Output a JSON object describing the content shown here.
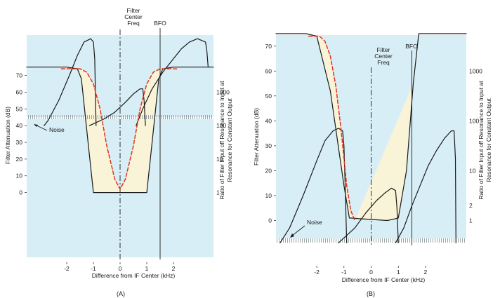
{
  "colors": {
    "band": "#d8eef6",
    "ylw": "#fbf3d6",
    "red": "#e0331e",
    "ink": "#1a1a1a",
    "grass": "#9aa5a8"
  },
  "chart_data": [
    {
      "type": "line",
      "caption": "(A)",
      "xlabel": "Difference from IF Center (kHz)",
      "ylabel_left": "Filter Attenuation (dB)",
      "ylabel_right": "Ratio of Filter Input off Resonance to Input at Resonance for Constant Output",
      "xlim": [
        -3.5,
        3.5
      ],
      "x_ticks": [
        "-2",
        "-1",
        "0",
        "1",
        "2"
      ],
      "x_tick_values": [
        -2,
        -1,
        0,
        1,
        2
      ],
      "ylim": [
        -40,
        95
      ],
      "y_ticks": [
        "0",
        "10",
        "20",
        "30",
        "40",
        "50",
        "60",
        "70"
      ],
      "y_tick_values": [
        0,
        10,
        20,
        30,
        40,
        50,
        60,
        70
      ],
      "right_ticks": [
        "1",
        "10",
        "100",
        "1000"
      ],
      "right_tick_values": [
        0,
        20,
        40,
        60
      ],
      "annotations": {
        "center": "Filter Center Freq",
        "bfo": "BFO",
        "noise": "Noise"
      },
      "center_x": 0,
      "bfo_x": 1.5,
      "noise_level": 40,
      "filter_response": {
        "x": [
          -3.5,
          -2,
          -1.6,
          -1.45,
          -1.2,
          -1,
          1,
          1.2,
          1.45,
          1.6,
          2,
          3.5
        ],
        "y": [
          75,
          75,
          74,
          68,
          30,
          0,
          0,
          30,
          68,
          74,
          75,
          75
        ]
      },
      "ideal_response": {
        "x": [
          -2.2,
          -1.5,
          -1.25,
          -1,
          -0.75,
          -0.5,
          -0.2,
          0,
          0.2,
          0.5,
          0.75,
          1,
          1.25,
          1.5,
          2.2
        ],
        "y": [
          74,
          74,
          72,
          65,
          50,
          28,
          8,
          2,
          8,
          28,
          50,
          65,
          72,
          74,
          74
        ]
      },
      "image_curve": {
        "x": [
          -2.85,
          -2.7,
          -2.3,
          -1.9,
          -1.6,
          -1.35,
          -1.1,
          -1.0,
          -0.95,
          -0.9
        ],
        "y": [
          40,
          43,
          55,
          70,
          82,
          90,
          92,
          90,
          80,
          40
        ]
      },
      "signal_curve": {
        "x": [
          -1.15,
          -0.6,
          -0.2,
          0.2,
          0.5,
          0.75,
          0.85,
          0.9,
          0.95
        ],
        "y": [
          40,
          44,
          48,
          54,
          59,
          62,
          62,
          55,
          40
        ]
      },
      "opposite_curve": {
        "x": [
          0.6,
          0.85,
          1.2,
          1.6,
          2.0,
          2.3,
          2.6,
          2.9,
          3.2,
          3.25,
          3.3
        ],
        "y": [
          40,
          50,
          62,
          72,
          80,
          86,
          90,
          92,
          90,
          85,
          75
        ]
      }
    },
    {
      "type": "line",
      "caption": "(B)",
      "xlabel": "Difference from IF Center (kHz)",
      "ylabel_left": "Filter Attenuation (dB)",
      "ylabel_right": "Ratio of Filter Input off Resonance to Input at Resonance for Constant Output",
      "xlim": [
        -3.5,
        3.5
      ],
      "x_ticks": [
        "-2",
        "-1",
        "0",
        "1",
        "2"
      ],
      "x_tick_values": [
        -2,
        -1,
        0,
        1,
        2
      ],
      "ylim": [
        -10,
        75
      ],
      "y_ticks": [
        "0",
        "10",
        "20",
        "30",
        "40",
        "50",
        "60",
        "70"
      ],
      "y_tick_values": [
        0,
        10,
        20,
        30,
        40,
        50,
        60,
        70
      ],
      "right_ticks": [
        "1",
        "2",
        "10",
        "100",
        "1000"
      ],
      "right_tick_values": [
        0,
        6,
        20,
        40,
        60
      ],
      "annotations": {
        "center": "Filter Center Freq",
        "bfo": "BFO",
        "noise": "Noise"
      },
      "center_x": 0,
      "bfo_x": 1.5,
      "noise_level": -10,
      "filter_response": {
        "x": [
          -3.5,
          -2.4,
          -2.0,
          -1.5,
          -1.0,
          -0.8,
          0.6,
          1.0,
          1.3,
          1.55,
          1.75,
          3.5
        ],
        "y": [
          75,
          75,
          74,
          52,
          14,
          1,
          0,
          1,
          20,
          55,
          75,
          75
        ]
      },
      "ideal_response": {
        "x": [
          -2.3,
          -1.9,
          -1.7,
          -1.5,
          -1.3,
          -1.1,
          -0.9,
          -0.75,
          -0.6
        ],
        "y": [
          74,
          74,
          72,
          66,
          54,
          36,
          14,
          4,
          0
        ]
      },
      "image_curve": {
        "x": [
          -3.35,
          -3.0,
          -2.5,
          -2.0,
          -1.7,
          -1.4,
          -1.2,
          -1.05,
          -1.0,
          -0.95,
          -0.9
        ],
        "y": [
          -9,
          -3,
          10,
          24,
          32,
          36,
          37,
          36,
          30,
          12,
          -9
        ]
      },
      "signal_curve": {
        "x": [
          -1.2,
          -0.6,
          -0.2,
          0.2,
          0.5,
          0.75,
          0.9,
          0.95,
          1.0
        ],
        "y": [
          -9,
          -3,
          3,
          8,
          11,
          13,
          12,
          5,
          -9
        ]
      },
      "opposite_curve": {
        "x": [
          0.9,
          1.2,
          1.5,
          1.8,
          2.1,
          2.4,
          2.7,
          2.95,
          3.05,
          3.1,
          3.12
        ],
        "y": [
          -9,
          -3,
          6,
          14,
          22,
          28,
          33,
          36,
          36,
          25,
          -9
        ]
      }
    }
  ]
}
